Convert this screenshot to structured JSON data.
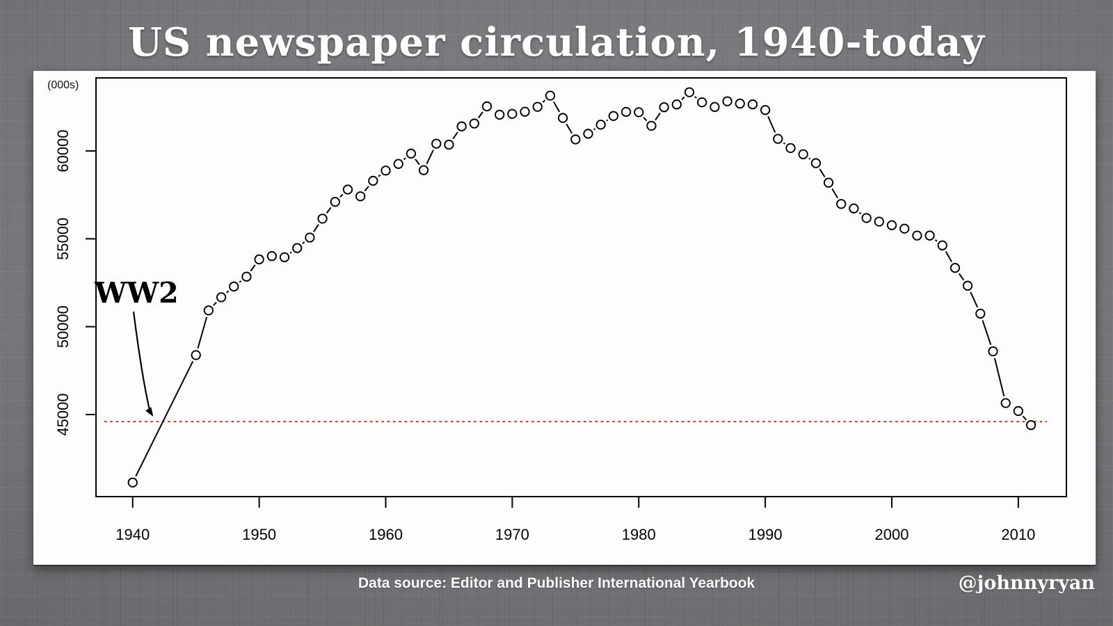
{
  "title": "US newspaper circulation, 1940-today",
  "footer": {
    "source": "Data source: Editor and Publisher International Yearbook",
    "credit": "@johnnyryan"
  },
  "colors": {
    "background_gray": "#6f7073",
    "panel_white": "#fdfdfd",
    "series_black": "#000000",
    "reference_red": "#d32b20",
    "title_white": "#ffffff"
  },
  "chart_data": {
    "type": "scatter",
    "title": "US newspaper circulation, 1940-today",
    "y_unit_label": "(000s)",
    "xlabel": "",
    "ylabel": "",
    "marker": "open-circle",
    "line_style": "segments-between-points",
    "grid": false,
    "legend": "none",
    "xlim": [
      1937.1,
      2013.8
    ],
    "ylim": [
      40330,
      64156
    ],
    "x_ticks": [
      1940,
      1950,
      1960,
      1970,
      1980,
      1990,
      2000,
      2010
    ],
    "y_ticks": [
      45000,
      50000,
      55000,
      60000
    ],
    "x": [
      1940,
      1945,
      1946,
      1947,
      1948,
      1949,
      1950,
      1951,
      1952,
      1953,
      1954,
      1955,
      1956,
      1957,
      1958,
      1959,
      1960,
      1961,
      1962,
      1963,
      1964,
      1965,
      1966,
      1967,
      1968,
      1969,
      1970,
      1971,
      1972,
      1973,
      1974,
      1975,
      1976,
      1977,
      1978,
      1979,
      1980,
      1981,
      1982,
      1983,
      1984,
      1985,
      1986,
      1987,
      1988,
      1989,
      1990,
      1991,
      1992,
      1993,
      1994,
      1995,
      1996,
      1997,
      1998,
      1999,
      2000,
      2001,
      2002,
      2003,
      2004,
      2005,
      2006,
      2007,
      2008,
      2009,
      2010,
      2011
    ],
    "values": [
      41132,
      48384,
      50928,
      51673,
      52285,
      52846,
      53829,
      54018,
      53951,
      54472,
      55072,
      56147,
      57102,
      57805,
      57418,
      58300,
      58882,
      59261,
      59849,
      58905,
      60412,
      60358,
      61397,
      61561,
      62535,
      62060,
      62108,
      62231,
      62510,
      63147,
      61877,
      60655,
      60977,
      61495,
      61990,
      62223,
      62202,
      61431,
      62487,
      62645,
      63340,
      62766,
      62502,
      62826,
      62695,
      62649,
      62328,
      60687,
      60164,
      59812,
      59305,
      58193,
      56983,
      56728,
      56182,
      55979,
      55773,
      55578,
      55186,
      55185,
      54626,
      53345,
      52329,
      50742,
      48597,
      45653,
      45200,
      44400
    ],
    "reference_line": {
      "value": 44600,
      "color": "#d32b20",
      "style": "dotted",
      "meaning": "today's circulation level"
    },
    "annotation": {
      "text": "WW2",
      "arrow_points_to_year": 1942.5,
      "arrow_points_to_value": 44600
    }
  }
}
